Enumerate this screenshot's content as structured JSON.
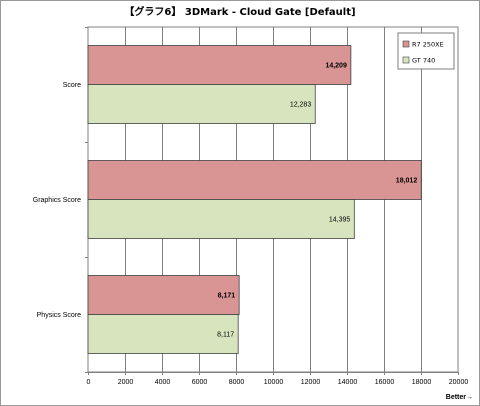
{
  "chart_data": {
    "type": "bar",
    "orientation": "horizontal",
    "title": "【グラフ6】 3DMark - Cloud Gate [Default]",
    "categories": [
      "Score",
      "Graphics Score",
      "Physics Score"
    ],
    "series": [
      {
        "name": "R7 250XE",
        "values": [
          14209,
          18012,
          8171
        ],
        "color": "#d99594",
        "labels_bold": true
      },
      {
        "name": "GT 740",
        "values": [
          12283,
          14395,
          8117
        ],
        "color": "#d7e4bd",
        "labels_bold": false
      }
    ],
    "xlim": [
      0,
      20000
    ],
    "xticks": [
      0,
      2000,
      4000,
      6000,
      8000,
      10000,
      12000,
      14000,
      16000,
      18000,
      20000
    ],
    "grid": true,
    "legend_position": "top-right",
    "xlabel_note": "Better→",
    "plot_background": "#ffffff",
    "gridline_color": "#7f7f7f"
  }
}
